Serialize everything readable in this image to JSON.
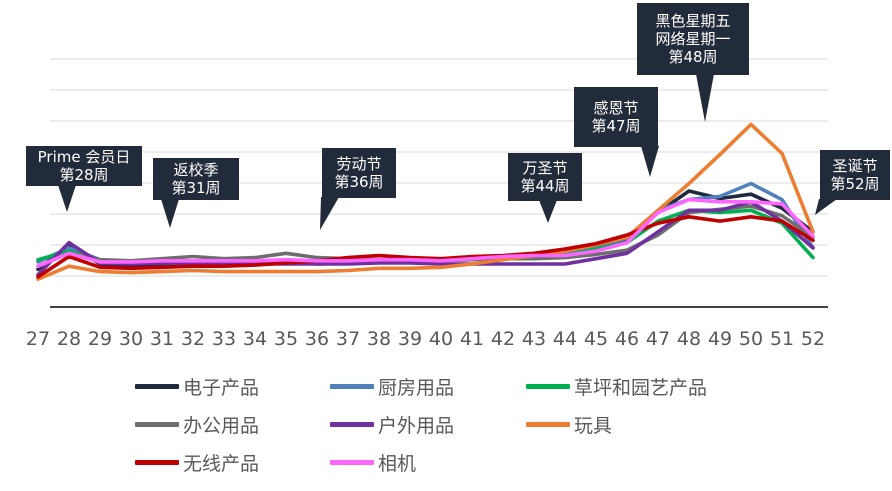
{
  "chart_data": {
    "type": "line",
    "title": "",
    "xlabel": "",
    "ylabel": "",
    "x": [
      27,
      28,
      29,
      30,
      31,
      32,
      33,
      34,
      35,
      36,
      37,
      38,
      39,
      40,
      41,
      42,
      43,
      44,
      45,
      46,
      47,
      48,
      49,
      50,
      51,
      52
    ],
    "ylim": [
      0,
      230
    ],
    "grid": true,
    "legend_position": "bottom",
    "series": [
      {
        "name": "电子产品",
        "color": "#1f2a3c",
        "values": [
          35,
          58,
          40,
          38,
          39,
          40,
          40,
          41,
          42,
          40,
          41,
          42,
          42,
          43,
          45,
          46,
          48,
          50,
          56,
          62,
          88,
          108,
          101,
          105,
          92,
          70
        ]
      },
      {
        "name": "厨房用品",
        "color": "#4f81bd",
        "values": [
          42,
          55,
          44,
          42,
          42,
          42,
          43,
          42,
          42,
          42,
          43,
          43,
          43,
          44,
          46,
          47,
          48,
          50,
          56,
          64,
          90,
          100,
          103,
          115,
          100,
          55
        ]
      },
      {
        "name": "草坪和园艺产品",
        "color": "#00b050",
        "values": [
          44,
          52,
          43,
          42,
          41,
          41,
          41,
          41,
          42,
          42,
          42,
          43,
          43,
          43,
          45,
          46,
          47,
          48,
          54,
          60,
          80,
          90,
          88,
          90,
          78,
          46
        ]
      },
      {
        "name": "办公用品",
        "color": "#6e6e6e",
        "values": [
          38,
          50,
          44,
          43,
          45,
          47,
          45,
          46,
          50,
          46,
          45,
          44,
          43,
          43,
          44,
          45,
          45,
          46,
          49,
          53,
          67,
          88,
          91,
          94,
          85,
          65
        ]
      },
      {
        "name": "户外用品",
        "color": "#7030a0",
        "values": [
          30,
          60,
          41,
          40,
          41,
          41,
          40,
          40,
          40,
          40,
          40,
          41,
          41,
          40,
          40,
          40,
          40,
          40,
          45,
          50,
          70,
          90,
          90,
          98,
          80,
          55
        ]
      },
      {
        "name": "玩具",
        "color": "#ed7d31",
        "values": [
          26,
          38,
          33,
          32,
          33,
          34,
          33,
          33,
          33,
          33,
          34,
          36,
          36,
          37,
          40,
          44,
          48,
          52,
          58,
          65,
          90,
          115,
          142,
          170,
          143,
          70
        ]
      },
      {
        "name": "无线产品",
        "color": "#c00000",
        "values": [
          28,
          47,
          37,
          36,
          37,
          38,
          38,
          39,
          41,
          43,
          46,
          48,
          46,
          45,
          47,
          48,
          50,
          54,
          59,
          67,
          78,
          84,
          80,
          84,
          80,
          62
        ]
      },
      {
        "name": "相机",
        "color": "#ff66ff",
        "values": [
          38,
          50,
          42,
          42,
          43,
          43,
          43,
          43,
          44,
          43,
          43,
          44,
          44,
          43,
          45,
          47,
          48,
          48,
          52,
          60,
          88,
          100,
          98,
          98,
          96,
          66
        ]
      }
    ],
    "annotations": [
      {
        "lines": [
          "Prime 会员日",
          "第28周"
        ],
        "week": 28
      },
      {
        "lines": [
          "返校季",
          "第31周"
        ],
        "week": 31
      },
      {
        "lines": [
          "劳动节",
          "第36周"
        ],
        "week": 36
      },
      {
        "lines": [
          "万圣节",
          "第44周"
        ],
        "week": 44
      },
      {
        "lines": [
          "感恩节",
          "第47周"
        ],
        "week": 47
      },
      {
        "lines": [
          "黑色星期五",
          "网络星期一",
          "第48周"
        ],
        "week": 48
      },
      {
        "lines": [
          "圣诞节",
          "第52周"
        ],
        "week": 52
      }
    ]
  }
}
